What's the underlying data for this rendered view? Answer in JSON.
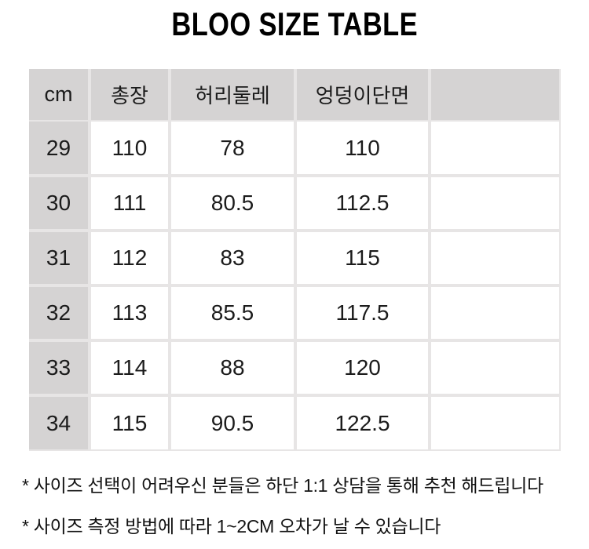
{
  "title": "BLOO SIZE TABLE",
  "table": {
    "headers": [
      "cm",
      "총장",
      "허리둘레",
      "엉덩이단면",
      ""
    ],
    "rows": [
      {
        "size": "29",
        "values": [
          "110",
          "78",
          "110",
          ""
        ]
      },
      {
        "size": "30",
        "values": [
          "111",
          "80.5",
          "112.5",
          ""
        ]
      },
      {
        "size": "31",
        "values": [
          "112",
          "83",
          "115",
          ""
        ]
      },
      {
        "size": "32",
        "values": [
          "113",
          "85.5",
          "117.5",
          ""
        ]
      },
      {
        "size": "33",
        "values": [
          "114",
          "88",
          "120",
          ""
        ]
      },
      {
        "size": "34",
        "values": [
          "115",
          "90.5",
          "122.5",
          ""
        ]
      }
    ]
  },
  "notes": [
    "* 사이즈 선택이 어려우신 분들은 하단 1:1 상담을 통해 추천 해드립니다",
    "* 사이즈 측정 방법에 따라 1~2CM 오차가 날 수 있습니다"
  ],
  "colors": {
    "header_bg": "#d5d3d3",
    "cell_border": "#e7e5e5",
    "text": "#1b1b1b"
  }
}
